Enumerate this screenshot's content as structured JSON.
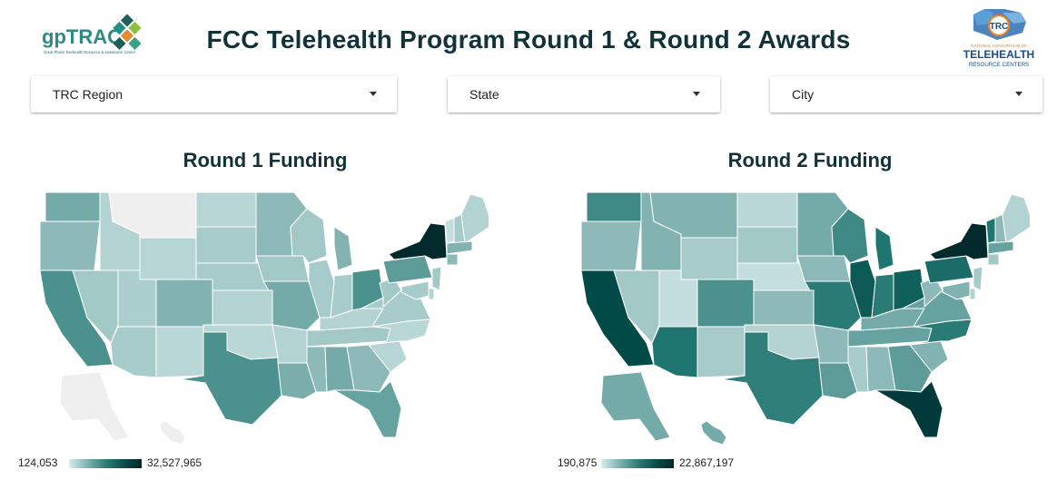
{
  "header": {
    "title": "FCC Telehealth Program Round 1 & Round 2 Awards",
    "left_logo": {
      "text": "gpTRAC",
      "tagline": "Great Plains Telehealth Resource & Assistance Center"
    },
    "right_logo": {
      "badge": "TRC",
      "small": "NATIONAL CONSORTIUM OF",
      "line1": "TELEHEALTH",
      "line2": "RESOURCE CENTERS"
    }
  },
  "filters": [
    {
      "label": "TRC Region"
    },
    {
      "label": "State"
    },
    {
      "label": "City"
    }
  ],
  "maps": [
    {
      "title": "Round 1 Funding",
      "legend_min": "124,053",
      "legend_max": "32,527,965",
      "state_colors": {
        "WA": "#74aaa7",
        "OR": "#8dbab8",
        "CA": "#4b928e",
        "NV": "#a3c9c7",
        "ID": "#b3d3d2",
        "MT": "#efefef",
        "WY": "#b6d5d4",
        "UT": "#abcece",
        "AZ": "#a8cccb",
        "NM": "#b9d7d6",
        "CO": "#82b3b1",
        "ND": "#b6d5d4",
        "SD": "#a7cbca",
        "NE": "#a7cbca",
        "KS": "#b3d3d2",
        "OK": "#b9d7d6",
        "TX": "#4b928e",
        "MN": "#8dbab8",
        "IA": "#a3c9c7",
        "MO": "#74aaa7",
        "AR": "#b3d3d2",
        "LA": "#7aaeab",
        "WI": "#a3c9c7",
        "IL": "#a7cbca",
        "MI": "#82b3b1",
        "IN": "#a7cbca",
        "OH": "#4b928e",
        "KY": "#b3d3d2",
        "TN": "#a3c9c7",
        "MS": "#8dbab8",
        "AL": "#74aaa7",
        "GA": "#8dbab8",
        "FL": "#66a29f",
        "SC": "#b6d5d4",
        "NC": "#b9d7d6",
        "VA": "#a7cbca",
        "WV": "#a3c9c7",
        "PA": "#5d9c99",
        "NY": "#022a2c",
        "VT": "#c4dedd",
        "NH": "#a7cbca",
        "ME": "#b3d3d2",
        "MA": "#82b3b1",
        "CT": "#8dbab8",
        "NJ": "#a3c9c7",
        "DE": "#b3d3d2",
        "MD": "#a7cbca",
        "AK": "#efefef",
        "HI": "#efefef"
      }
    },
    {
      "title": "Round 2 Funding",
      "legend_min": "190,875",
      "legend_max": "22,867,197",
      "state_colors": {
        "WA": "#3f8985",
        "OR": "#8dbab8",
        "CA": "#024a47",
        "NV": "#a3c9c7",
        "ID": "#82b3b1",
        "MT": "#82b3b1",
        "WY": "#a7cbca",
        "UT": "#c4dedd",
        "AZ": "#1f7671",
        "NM": "#a7cbca",
        "CO": "#4b928e",
        "ND": "#b9d7d6",
        "SD": "#a3c9c7",
        "NE": "#c4dedd",
        "KS": "#8dbab8",
        "OK": "#b3d3d2",
        "TX": "#2f7e79",
        "MN": "#74aaa7",
        "IA": "#8dbab8",
        "MO": "#2a7a76",
        "AR": "#8dbab8",
        "LA": "#5d9c99",
        "WI": "#3f8985",
        "IL": "#0c5956",
        "MI": "#1f7671",
        "IN": "#2a7a76",
        "OH": "#0f5f5b",
        "KY": "#74aaa7",
        "TN": "#66a29f",
        "MS": "#a7cbca",
        "AL": "#8dbab8",
        "GA": "#5d9c99",
        "FL": "#023a3b",
        "SC": "#82b3b1",
        "NC": "#2a7a76",
        "VA": "#66a29f",
        "WV": "#8dbab8",
        "PA": "#1a6c68",
        "NY": "#022a2c",
        "VT": "#1f7671",
        "NH": "#8dbab8",
        "ME": "#b3d3d2",
        "MA": "#66a29f",
        "CT": "#a3c9c7",
        "NJ": "#a7cbca",
        "DE": "#b3d3d2",
        "MD": "#82b3b1",
        "AK": "#74aaa7",
        "HI": "#74aaa7"
      }
    }
  ]
}
